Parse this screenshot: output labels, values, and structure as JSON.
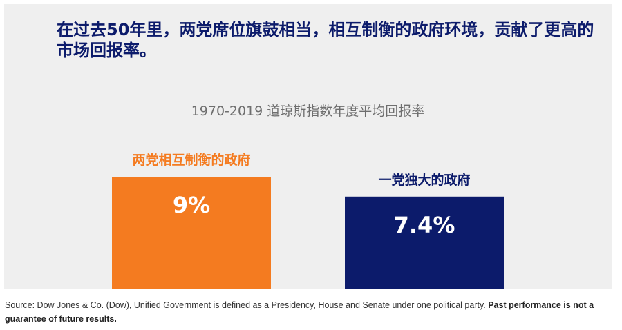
{
  "headline": "在过去50年里，两党席位旗鼓相当，相互制衡的政府环境，贡献了更高的市场回报率。",
  "chart_data": {
    "type": "bar",
    "title": "1970-2019 道琼斯指数年度平均回报率",
    "categories": [
      "两党相互制衡的政府",
      "一党独大的政府"
    ],
    "values": [
      9,
      7.4
    ],
    "value_labels": [
      "9%",
      "7.4%"
    ],
    "unit": "%",
    "colors": [
      "#f47b20",
      "#0c1b6b"
    ],
    "label_colors": [
      "#f47b20",
      "#0c1b6b"
    ],
    "grid": false,
    "legend": "none"
  },
  "source": {
    "text": "Source: Dow Jones & Co. (Dow), Unified Government is defined as a Presidency, House and Senate under one political party. ",
    "bold": "Past performance is not a guarantee of future results."
  }
}
